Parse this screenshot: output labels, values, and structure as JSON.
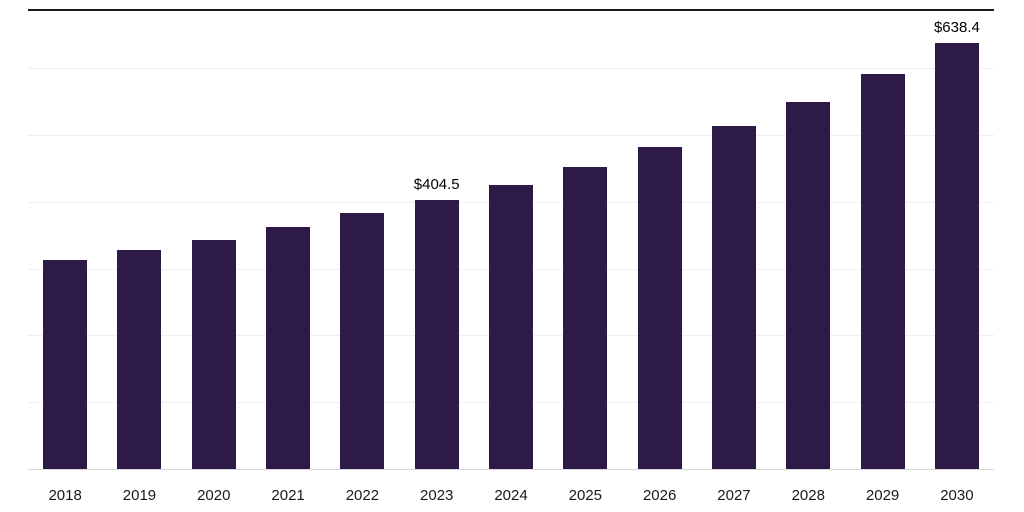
{
  "chart_data": {
    "type": "bar",
    "title": "",
    "xlabel": "",
    "ylabel": "",
    "categories": [
      "2018",
      "2019",
      "2020",
      "2021",
      "2022",
      "2023",
      "2024",
      "2025",
      "2026",
      "2027",
      "2028",
      "2029",
      "2030"
    ],
    "values": [
      315,
      329,
      345,
      363,
      384,
      404.5,
      427,
      453,
      483,
      515,
      551,
      593,
      638.4
    ],
    "data_labels": {
      "2023": "$404.5",
      "2030": "$638.4"
    },
    "ylim": [
      0,
      690
    ],
    "gridlines": [
      100,
      200,
      300,
      400,
      500,
      600
    ],
    "grid": "horizontal",
    "legend": "none",
    "colors": {
      "bar": "#2e1a47",
      "gridline": "#efefef",
      "axis_line": "#d9d9d9",
      "top_border": "#1a1a1a",
      "value_label": "#000000",
      "tick_label": "#1a1a1a"
    }
  }
}
